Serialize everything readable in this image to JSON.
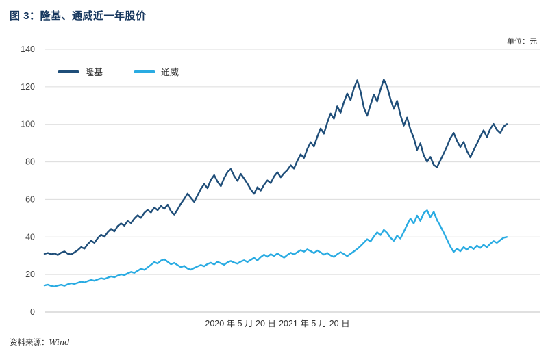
{
  "header": {
    "title": "图 3：隆基、通威近一年股价",
    "unit_label": "单位：元"
  },
  "footer": {
    "source_prefix": "资料来源：",
    "source_name": "Wind"
  },
  "chart_data": {
    "type": "line",
    "title": "图 3：隆基、通威近一年股价",
    "xlabel": "2020 年 5 月 20 日-2021 年 5 月 20 日",
    "ylabel": "",
    "unit": "元",
    "ylim": [
      0,
      140
    ],
    "yticks": [
      0,
      20,
      40,
      60,
      80,
      100,
      120,
      140
    ],
    "grid": "horizontal",
    "legend_position": "top-left",
    "colors": {
      "grid": "#dcdcdc",
      "baseline": "#c2c2c2",
      "axis_text": "#3f3f3f"
    },
    "series": [
      {
        "name": "隆基",
        "color": "#1f4e79",
        "values": [
          31.0,
          31.5,
          30.8,
          31.2,
          30.4,
          31.6,
          32.3,
          31.1,
          30.7,
          31.8,
          33.0,
          34.6,
          33.8,
          36.2,
          38.0,
          36.9,
          39.4,
          41.2,
          40.1,
          42.6,
          44.3,
          43.0,
          45.8,
          47.2,
          46.0,
          48.5,
          47.4,
          49.8,
          51.6,
          50.2,
          52.9,
          54.4,
          53.1,
          55.7,
          54.3,
          56.5,
          55.0,
          57.2,
          53.8,
          51.9,
          54.6,
          57.8,
          60.3,
          63.1,
          60.8,
          58.7,
          62.2,
          65.6,
          68.2,
          66.0,
          70.4,
          72.9,
          69.5,
          67.1,
          71.3,
          74.6,
          76.2,
          72.5,
          69.9,
          73.6,
          71.1,
          68.4,
          65.3,
          63.0,
          66.5,
          64.7,
          67.8,
          70.1,
          68.7,
          72.2,
          74.5,
          71.8,
          73.9,
          75.6,
          78.2,
          76.4,
          80.6,
          84.0,
          82.1,
          86.8,
          90.5,
          88.2,
          93.4,
          97.8,
          95.0,
          100.9,
          105.8,
          103.0,
          109.6,
          106.2,
          111.8,
          116.4,
          112.9,
          119.2,
          123.4,
          117.6,
          108.9,
          104.6,
          110.3,
          115.9,
          112.2,
          118.6,
          123.8,
          120.0,
          113.5,
          108.2,
          112.6,
          104.9,
          99.3,
          103.6,
          97.2,
          92.8,
          86.4,
          89.9,
          83.5,
          80.1,
          82.6,
          78.4,
          77.2,
          80.8,
          84.5,
          88.3,
          92.6,
          95.4,
          91.2,
          87.9,
          90.6,
          85.8,
          82.4,
          86.2,
          89.7,
          93.5,
          96.8,
          93.2,
          97.6,
          100.2,
          97.0,
          95.3,
          98.8,
          100.1
        ]
      },
      {
        "name": "通威",
        "color": "#29abe2",
        "values": [
          14.2,
          14.6,
          13.9,
          13.6,
          14.1,
          14.5,
          14.0,
          14.8,
          15.3,
          15.0,
          15.6,
          16.2,
          15.8,
          16.5,
          17.1,
          16.7,
          17.4,
          18.0,
          17.6,
          18.3,
          19.0,
          18.6,
          19.4,
          20.1,
          19.7,
          20.6,
          21.4,
          20.9,
          22.0,
          23.1,
          22.5,
          23.8,
          25.2,
          26.6,
          25.9,
          27.4,
          28.1,
          26.8,
          25.5,
          26.2,
          25.0,
          23.9,
          24.6,
          23.2,
          22.6,
          23.5,
          24.3,
          25.1,
          24.4,
          25.6,
          26.3,
          25.4,
          26.8,
          26.0,
          25.2,
          26.5,
          27.2,
          26.4,
          25.8,
          26.9,
          27.6,
          26.7,
          27.8,
          28.9,
          27.5,
          29.3,
          30.6,
          29.5,
          30.8,
          29.9,
          31.2,
          30.1,
          29.0,
          30.4,
          31.6,
          30.7,
          31.9,
          33.0,
          32.2,
          33.4,
          32.5,
          31.4,
          32.8,
          31.8,
          30.6,
          31.5,
          30.2,
          29.4,
          30.8,
          31.9,
          30.9,
          29.8,
          31.1,
          32.3,
          33.6,
          35.2,
          37.0,
          38.8,
          37.6,
          40.2,
          42.5,
          41.0,
          43.8,
          42.2,
          39.6,
          38.0,
          40.6,
          39.2,
          42.8,
          46.5,
          49.8,
          47.2,
          51.4,
          48.6,
          52.8,
          54.2,
          50.6,
          53.4,
          49.0,
          45.8,
          42.4,
          38.6,
          34.9,
          32.0,
          33.8,
          32.4,
          34.6,
          33.2,
          34.9,
          33.6,
          35.4,
          34.2,
          35.8,
          34.6,
          36.4,
          37.8,
          36.9,
          38.3,
          39.6,
          40.0
        ]
      }
    ]
  }
}
